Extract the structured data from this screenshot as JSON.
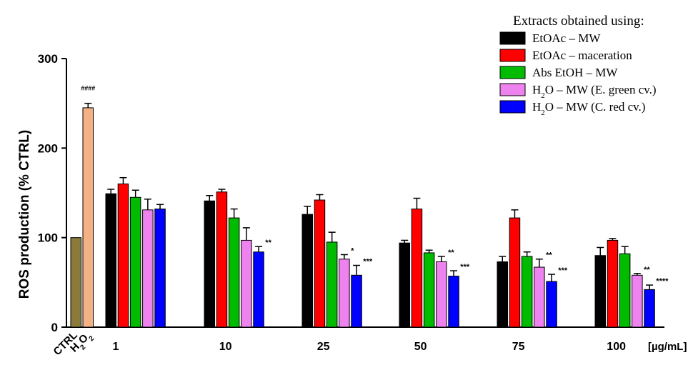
{
  "chart_data": {
    "type": "bar",
    "ylabel": "ROS production (% CTRL)",
    "xunit": "[µg/mL]",
    "ylim": [
      0,
      300
    ],
    "yticks": [
      0,
      100,
      200,
      300
    ],
    "grid": false,
    "legend_title": "Extracts obtained using:",
    "legend_position": "top-right",
    "controls": [
      {
        "label": "CTRL",
        "value": 100,
        "err": 0,
        "color": "#8b7a3a",
        "annotation": ""
      },
      {
        "label": "H2O2",
        "label_main": "H",
        "label_sub": "2",
        "label_main2": "O",
        "label_sub2": "2",
        "value": 245,
        "err": 5,
        "color": "#f4b183",
        "annotation": "####"
      }
    ],
    "categories": [
      "1",
      "10",
      "25",
      "50",
      "75",
      "100"
    ],
    "series": [
      {
        "name": "EtOAc – MW",
        "name_parts": [
          "EtOAc – MW"
        ],
        "color": "#000000",
        "values": [
          149,
          141,
          126,
          94,
          73,
          80
        ],
        "errors": [
          5,
          6,
          9,
          3,
          6,
          9
        ],
        "annotations": [
          "",
          "",
          "",
          "",
          "",
          ""
        ]
      },
      {
        "name": "EtOAc – maceration",
        "name_parts": [
          "EtOAc – maceration"
        ],
        "color": "#ff0000",
        "values": [
          160,
          151,
          142,
          132,
          122,
          97
        ],
        "errors": [
          7,
          3,
          6,
          12,
          9,
          2
        ],
        "annotations": [
          "",
          "",
          "",
          "",
          "",
          ""
        ]
      },
      {
        "name": "Abs EtOH – MW",
        "name_parts": [
          "Abs EtOH – MW"
        ],
        "color": "#00bb00",
        "values": [
          145,
          122,
          95,
          83,
          79,
          82
        ],
        "errors": [
          8,
          10,
          11,
          3,
          5,
          8
        ],
        "annotations": [
          "",
          "",
          "",
          "",
          "",
          ""
        ]
      },
      {
        "name": "H2O – MW (E. green cv.)",
        "name_parts": [
          "H",
          "2",
          "O – MW (E. green cv.)"
        ],
        "color": "#ee82ee",
        "values": [
          131,
          97,
          76,
          73,
          67,
          58
        ],
        "errors": [
          12,
          14,
          5,
          6,
          9,
          2
        ],
        "annotations": [
          "",
          "",
          "*",
          "**",
          "**",
          "**"
        ]
      },
      {
        "name": "H2O – MW (C. red cv.)",
        "name_parts": [
          "H",
          "2",
          "O – MW (C. red cv.)"
        ],
        "color": "#0000ff",
        "values": [
          132,
          84,
          58,
          57,
          51,
          42
        ],
        "errors": [
          5,
          6,
          11,
          6,
          8,
          5
        ],
        "annotations": [
          "",
          "**",
          "***",
          "***",
          "***",
          "****"
        ]
      }
    ]
  }
}
